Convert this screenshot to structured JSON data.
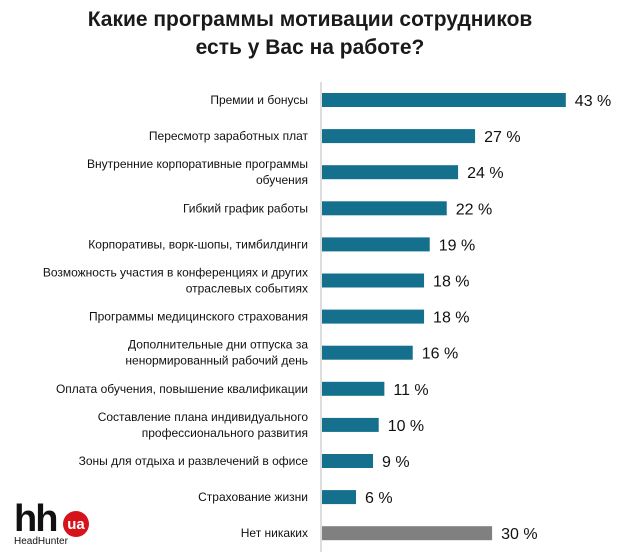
{
  "chart_data": {
    "type": "bar",
    "orientation": "horizontal",
    "title_lines": [
      "Какие программы мотивации сотрудников",
      "есть у Вас на работе?"
    ],
    "categories": [
      [
        "Премии и бонусы"
      ],
      [
        "Пересмотр заработных плат"
      ],
      [
        "Внутренние корпоративные программы",
        "обучения"
      ],
      [
        "Гибкий график работы"
      ],
      [
        "Корпоративы, ворк-шопы, тимбилдинги"
      ],
      [
        "Возможность участия в конференциях и других",
        "отраслевых событиях"
      ],
      [
        "Программы медицинского страхования"
      ],
      [
        "Дополнительные дни отпуска за",
        "ненормированный рабочий день"
      ],
      [
        "Оплата обучения, повышение квалификации"
      ],
      [
        "Составление плана индивидуального",
        "профессионального развития"
      ],
      [
        "Зоны для отдыха и развлечений в офисе"
      ],
      [
        "Страхование жизни"
      ],
      [
        "Нет никаких"
      ]
    ],
    "values": [
      43,
      27,
      24,
      22,
      19,
      18,
      18,
      16,
      11,
      10,
      9,
      6,
      30
    ],
    "value_labels": [
      "43 %",
      "27 %",
      "24 %",
      "22 %",
      "19 %",
      "18 %",
      "18 %",
      "16 %",
      "11 %",
      "10 %",
      "9 %",
      "6 %",
      "30 %"
    ],
    "colors": [
      "#14708d",
      "#14708d",
      "#14708d",
      "#14708d",
      "#14708d",
      "#14708d",
      "#14708d",
      "#14708d",
      "#14708d",
      "#14708d",
      "#14708d",
      "#14708d",
      "#808080"
    ],
    "xlim": [
      0,
      50
    ],
    "grid": false,
    "legend": "none"
  },
  "logo": {
    "main": "hh",
    "badge": "ua",
    "sub": "HeadHunter",
    "badge_color": "#d6121a"
  }
}
